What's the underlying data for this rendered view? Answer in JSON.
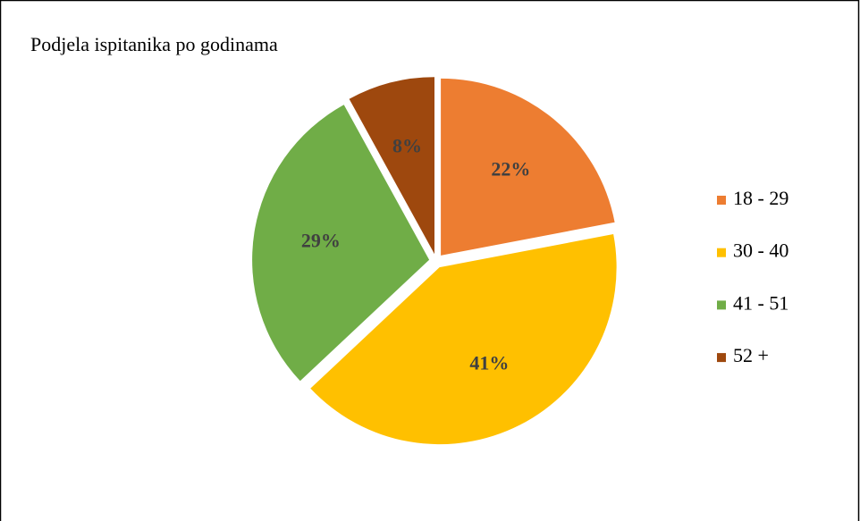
{
  "chart_data": {
    "type": "pie",
    "title": "Podjela ispitanika po godinama",
    "categories": [
      "18 - 29",
      "30 - 40",
      "41 - 51",
      "52 +"
    ],
    "values": [
      22,
      41,
      29,
      8
    ],
    "value_labels": [
      "22%",
      "41%",
      "29%",
      "8%"
    ],
    "colors": [
      "#ed7d31",
      "#ffc000",
      "#70ad47",
      "#9e480e"
    ],
    "legend": "right"
  }
}
